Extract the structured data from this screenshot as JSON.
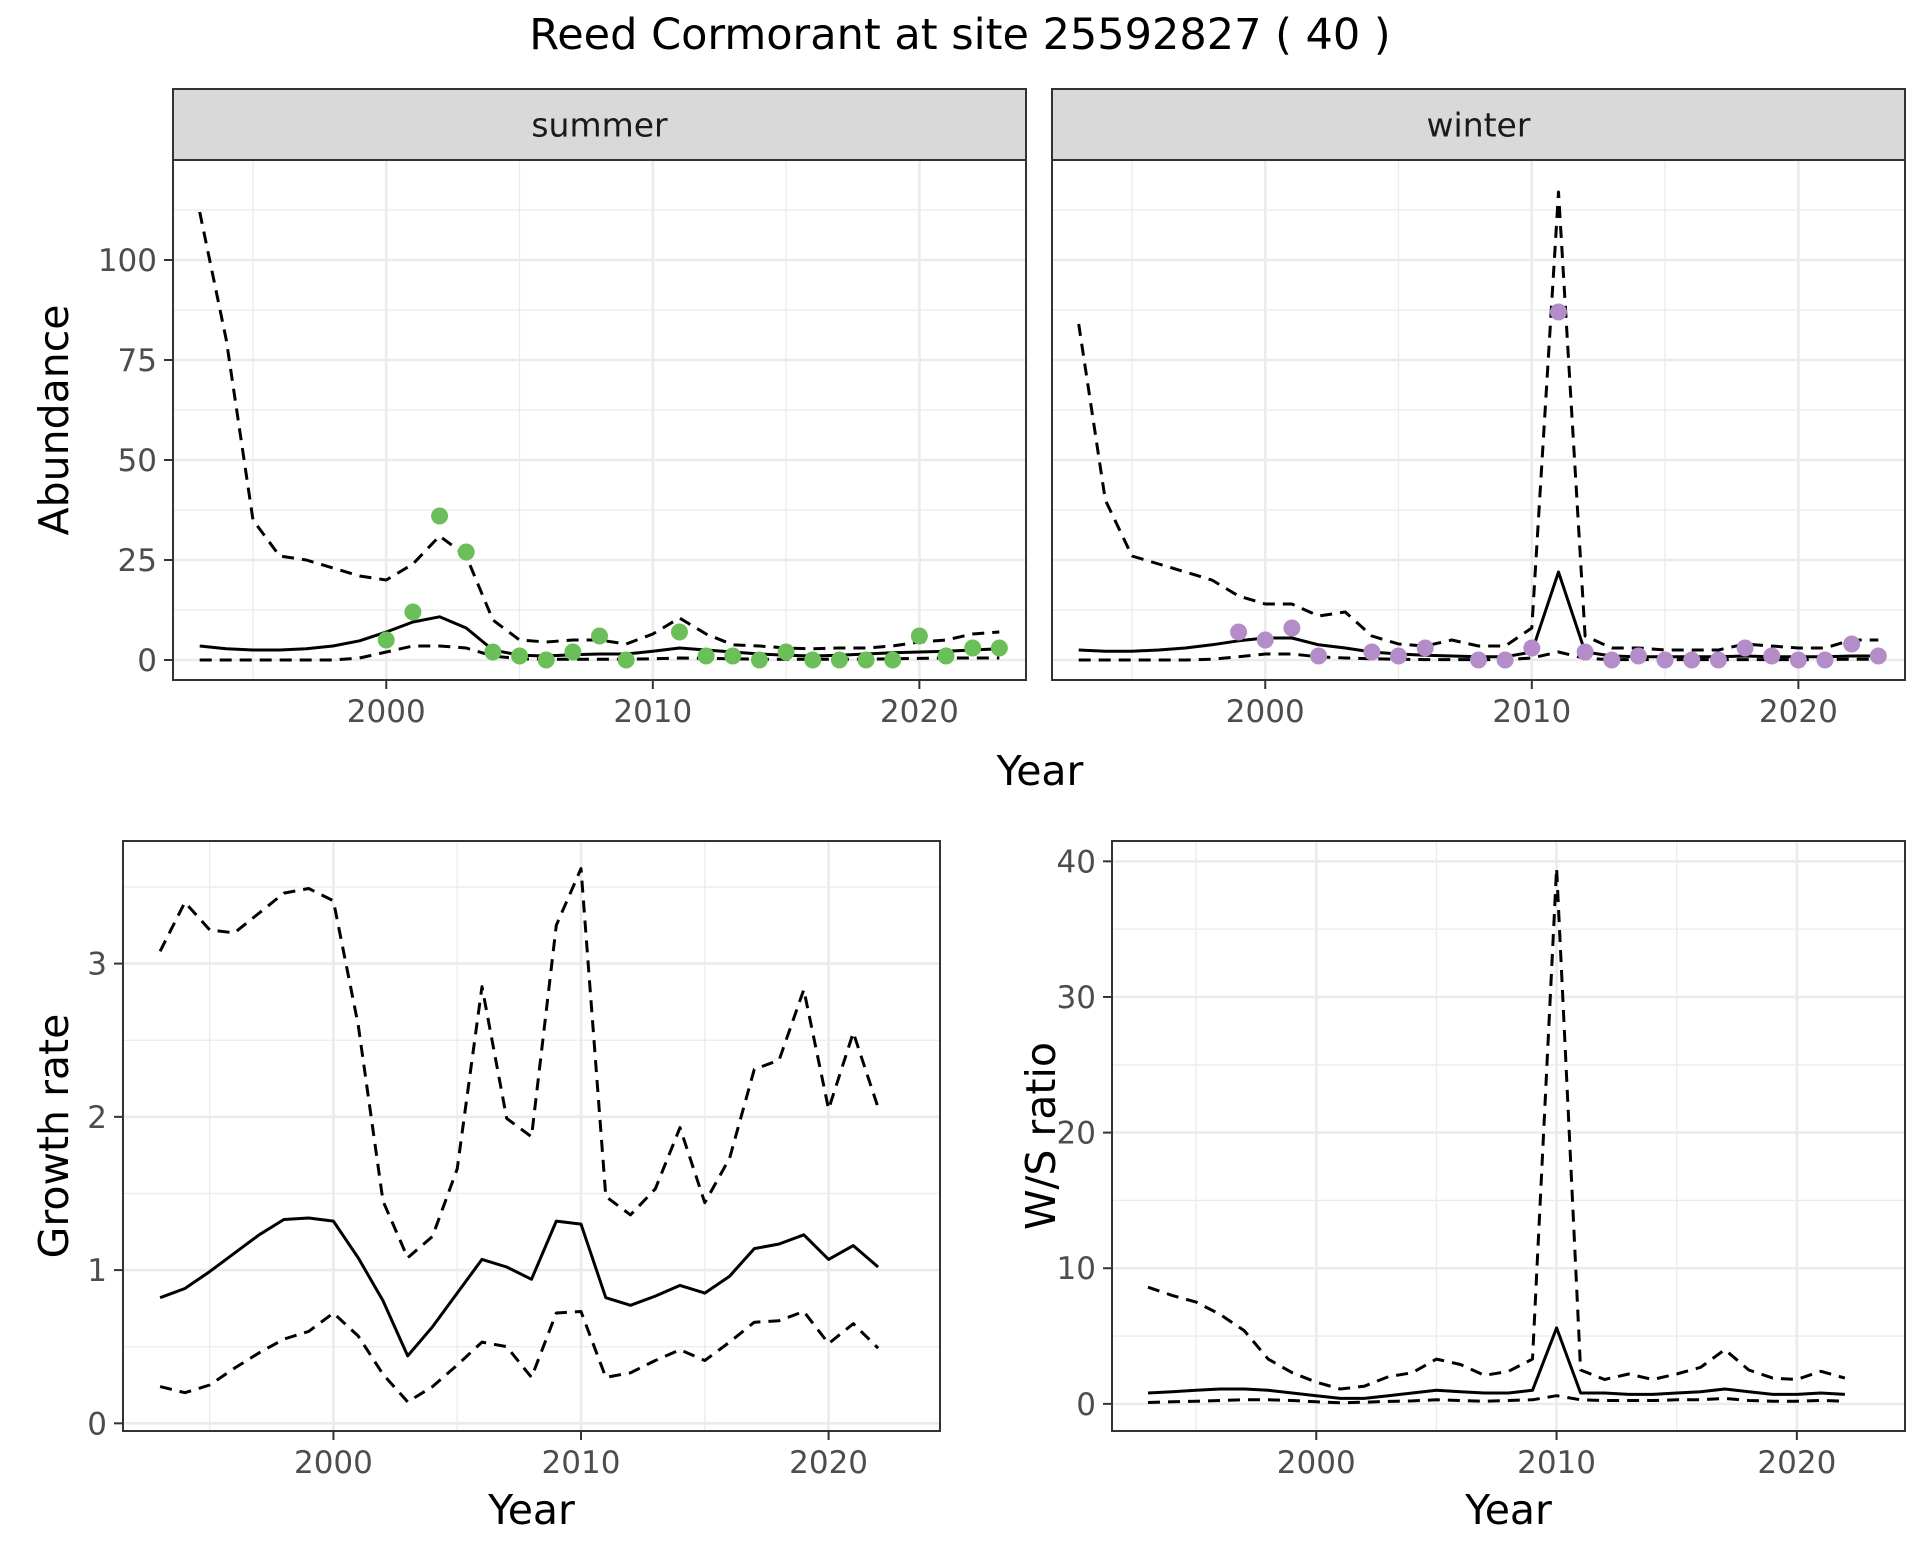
{
  "title": "Reed Cormorant at site 25592827 ( 40 )",
  "colors": {
    "summer": "#6BBF59",
    "winter": "#B48CC8",
    "line": "#000000",
    "strip": "#D9D9D9",
    "grid": "#EBEBEB"
  },
  "chart_data": [
    {
      "type": "line",
      "panel": "summer",
      "facet_label": "summer",
      "xlabel": "Year",
      "ylabel": "Abundance",
      "xlim": [
        1992,
        2024
      ],
      "ylim": [
        -5,
        125
      ],
      "xticks": [
        2000,
        2010,
        2020
      ],
      "yticks": [
        0,
        25,
        50,
        75,
        100
      ],
      "series": [
        {
          "role": "mean",
          "style": "solid",
          "x": [
            1993,
            1994,
            1995,
            1996,
            1997,
            1998,
            1999,
            2000,
            2001,
            2002,
            2003,
            2004,
            2005,
            2006,
            2007,
            2008,
            2009,
            2010,
            2011,
            2012,
            2013,
            2014,
            2015,
            2016,
            2017,
            2018,
            2019,
            2020,
            2021,
            2022,
            2023
          ],
          "y": [
            3.5,
            2.8,
            2.5,
            2.5,
            2.8,
            3.5,
            4.8,
            7,
            9.5,
            10.8,
            8,
            2.5,
            1.2,
            1,
            1.3,
            1.5,
            1.5,
            2.2,
            3,
            2.5,
            2,
            1.5,
            1.2,
            1,
            1.2,
            1.5,
            1.8,
            2,
            2.2,
            2.5,
            2.8
          ]
        },
        {
          "role": "upper",
          "style": "dashed",
          "x": [
            1993,
            1994,
            1995,
            1996,
            1997,
            1998,
            1999,
            2000,
            2001,
            2002,
            2003,
            2004,
            2005,
            2006,
            2007,
            2008,
            2009,
            2010,
            2011,
            2012,
            2013,
            2014,
            2015,
            2016,
            2017,
            2018,
            2019,
            2020,
            2021,
            2022,
            2023
          ],
          "y": [
            112,
            80,
            35,
            26,
            25,
            23,
            21,
            20,
            24,
            31,
            26,
            10,
            5,
            4.5,
            5,
            5,
            4,
            6.5,
            10.5,
            6.5,
            3.8,
            3.5,
            3,
            2.8,
            3,
            3,
            3.5,
            4.5,
            5,
            6.5,
            7
          ]
        },
        {
          "role": "lower",
          "style": "dashed",
          "x": [
            1993,
            1994,
            1995,
            1996,
            1997,
            1998,
            1999,
            2000,
            2001,
            2002,
            2003,
            2004,
            2005,
            2006,
            2007,
            2008,
            2009,
            2010,
            2011,
            2012,
            2013,
            2014,
            2015,
            2016,
            2017,
            2018,
            2019,
            2020,
            2021,
            2022,
            2023
          ],
          "y": [
            0,
            0,
            0,
            0,
            0,
            0,
            0.5,
            2,
            3.5,
            3.5,
            3,
            1,
            0.3,
            0.2,
            0.2,
            0.2,
            0.2,
            0.3,
            0.5,
            0.4,
            0.3,
            0.2,
            0.2,
            0.2,
            0.2,
            0.2,
            0.3,
            0.4,
            0.5,
            0.5,
            0.5
          ]
        },
        {
          "role": "observed",
          "style": "points",
          "x": [
            2000,
            2001,
            2002,
            2003,
            2004,
            2005,
            2006,
            2007,
            2008,
            2009,
            2011,
            2012,
            2013,
            2014,
            2015,
            2016,
            2017,
            2018,
            2019,
            2020,
            2021,
            2022,
            2023
          ],
          "y": [
            5,
            12,
            36,
            27,
            2,
            1,
            0,
            2,
            6,
            0,
            7,
            1,
            1,
            0,
            2,
            0,
            0,
            0,
            0,
            6,
            1,
            3,
            3
          ]
        }
      ]
    },
    {
      "type": "line",
      "panel": "winter",
      "facet_label": "winter",
      "xlabel": "Year",
      "xlim": [
        1992,
        2024
      ],
      "ylim": [
        -5,
        125
      ],
      "xticks": [
        2000,
        2010,
        2020
      ],
      "series": [
        {
          "role": "mean",
          "style": "solid",
          "x": [
            1993,
            1994,
            1995,
            1996,
            1997,
            1998,
            1999,
            2000,
            2001,
            2002,
            2003,
            2004,
            2005,
            2006,
            2007,
            2008,
            2009,
            2010,
            2011,
            2012,
            2013,
            2014,
            2015,
            2016,
            2017,
            2018,
            2019,
            2020,
            2021,
            2022,
            2023
          ],
          "y": [
            2.5,
            2.2,
            2.2,
            2.5,
            3,
            3.8,
            4.8,
            5.5,
            5.5,
            3.8,
            3,
            2,
            1.5,
            1.2,
            1,
            0.8,
            0.8,
            2,
            22,
            2,
            1,
            0.8,
            0.8,
            0.8,
            0.8,
            1,
            0.8,
            0.8,
            0.8,
            1,
            1
          ]
        },
        {
          "role": "upper",
          "style": "dashed",
          "x": [
            1993,
            1994,
            1995,
            1996,
            1997,
            1998,
            1999,
            2000,
            2001,
            2002,
            2003,
            2004,
            2005,
            2006,
            2007,
            2008,
            2009,
            2010,
            2011,
            2012,
            2013,
            2014,
            2015,
            2016,
            2017,
            2018,
            2019,
            2020,
            2021,
            2022,
            2023
          ],
          "y": [
            84,
            40,
            26,
            24,
            22,
            20,
            16,
            14,
            14,
            11,
            12,
            6,
            4,
            3.5,
            5,
            3.5,
            3.5,
            8,
            117,
            6,
            3,
            3,
            2.5,
            2.5,
            2.5,
            4,
            3.5,
            3,
            3,
            5,
            5
          ]
        },
        {
          "role": "lower",
          "style": "dashed",
          "x": [
            1993,
            1994,
            1995,
            1996,
            1997,
            1998,
            1999,
            2000,
            2001,
            2002,
            2003,
            2004,
            2005,
            2006,
            2007,
            2008,
            2009,
            2010,
            2011,
            2012,
            2013,
            2014,
            2015,
            2016,
            2017,
            2018,
            2019,
            2020,
            2021,
            2022,
            2023
          ],
          "y": [
            0,
            0,
            0,
            0,
            0,
            0.2,
            0.8,
            1.5,
            1.5,
            0.8,
            0.5,
            0.3,
            0.2,
            0.1,
            0.1,
            0.1,
            0.1,
            0.5,
            2,
            0.4,
            0.1,
            0.1,
            0.1,
            0.1,
            0.1,
            0.1,
            0.1,
            0.1,
            0.1,
            0.2,
            0.2
          ]
        },
        {
          "role": "observed",
          "style": "points",
          "x": [
            1999,
            2000,
            2001,
            2002,
            2004,
            2005,
            2006,
            2008,
            2009,
            2010,
            2011,
            2012,
            2013,
            2014,
            2015,
            2016,
            2017,
            2018,
            2019,
            2020,
            2021,
            2022,
            2023
          ],
          "y": [
            7,
            5,
            8,
            1,
            2,
            1,
            3,
            0,
            0,
            3,
            87,
            2,
            0,
            1,
            0,
            0,
            0,
            3,
            1,
            0,
            0,
            4,
            1
          ]
        }
      ]
    },
    {
      "type": "line",
      "panel": "growth",
      "xlabel": "Year",
      "ylabel": "Growth rate",
      "xlim": [
        1991.5,
        2024.5
      ],
      "ylim": [
        -0.05,
        3.8
      ],
      "xticks": [
        2000,
        2010,
        2020
      ],
      "yticks": [
        0,
        1,
        2,
        3
      ],
      "series": [
        {
          "role": "mean",
          "style": "solid",
          "x": [
            1993,
            1994,
            1995,
            1996,
            1997,
            1998,
            1999,
            2000,
            2001,
            2002,
            2003,
            2004,
            2005,
            2006,
            2007,
            2008,
            2009,
            2010,
            2011,
            2012,
            2013,
            2014,
            2015,
            2016,
            2017,
            2018,
            2019,
            2020,
            2021,
            2022
          ],
          "y": [
            0.82,
            0.88,
            0.99,
            1.11,
            1.23,
            1.33,
            1.34,
            1.32,
            1.08,
            0.8,
            0.44,
            0.63,
            0.85,
            1.07,
            1.02,
            0.94,
            1.32,
            1.3,
            0.82,
            0.77,
            0.83,
            0.9,
            0.85,
            0.96,
            1.14,
            1.17,
            1.23,
            1.07,
            1.16,
            1.02
          ]
        },
        {
          "role": "upper",
          "style": "dashed",
          "x": [
            1993,
            1994,
            1995,
            1996,
            1997,
            1998,
            1999,
            2000,
            2001,
            2002,
            2003,
            2004,
            2005,
            2006,
            2007,
            2008,
            2009,
            2010,
            2011,
            2012,
            2013,
            2014,
            2015,
            2016,
            2017,
            2018,
            2019,
            2020,
            2021,
            2022
          ],
          "y": [
            3.08,
            3.4,
            3.22,
            3.2,
            3.33,
            3.46,
            3.49,
            3.41,
            2.6,
            1.45,
            1.08,
            1.22,
            1.66,
            2.85,
            1.99,
            1.87,
            3.25,
            3.62,
            1.48,
            1.36,
            1.53,
            1.93,
            1.44,
            1.73,
            2.31,
            2.37,
            2.83,
            2.05,
            2.55,
            2.06
          ]
        },
        {
          "role": "lower",
          "style": "dashed",
          "x": [
            1993,
            1994,
            1995,
            1996,
            1997,
            1998,
            1999,
            2000,
            2001,
            2002,
            2003,
            2004,
            2005,
            2006,
            2007,
            2008,
            2009,
            2010,
            2011,
            2012,
            2013,
            2014,
            2015,
            2016,
            2017,
            2018,
            2019,
            2020,
            2021,
            2022
          ],
          "y": [
            0.24,
            0.2,
            0.25,
            0.36,
            0.46,
            0.55,
            0.6,
            0.72,
            0.57,
            0.32,
            0.14,
            0.24,
            0.38,
            0.53,
            0.5,
            0.3,
            0.72,
            0.73,
            0.3,
            0.33,
            0.41,
            0.48,
            0.41,
            0.53,
            0.66,
            0.67,
            0.73,
            0.52,
            0.65,
            0.49
          ]
        }
      ]
    },
    {
      "type": "line",
      "panel": "ratio",
      "xlabel": "Year",
      "ylabel": "W/S ratio",
      "xlim": [
        1991.5,
        2024.5
      ],
      "ylim": [
        -2,
        41.5
      ],
      "xticks": [
        2000,
        2010,
        2020
      ],
      "yticks": [
        0,
        10,
        20,
        30,
        40
      ],
      "series": [
        {
          "role": "mean",
          "style": "solid",
          "x": [
            1993,
            1994,
            1995,
            1996,
            1997,
            1998,
            1999,
            2000,
            2001,
            2002,
            2003,
            2004,
            2005,
            2006,
            2007,
            2008,
            2009,
            2010,
            2011,
            2012,
            2013,
            2014,
            2015,
            2016,
            2017,
            2018,
            2019,
            2020,
            2021,
            2022
          ],
          "y": [
            0.8,
            0.9,
            1,
            1.1,
            1.1,
            1,
            0.8,
            0.6,
            0.4,
            0.4,
            0.6,
            0.8,
            1,
            0.9,
            0.8,
            0.8,
            1,
            5.6,
            0.8,
            0.8,
            0.7,
            0.7,
            0.8,
            0.9,
            1.1,
            0.9,
            0.7,
            0.7,
            0.8,
            0.7
          ]
        },
        {
          "role": "upper",
          "style": "dashed",
          "x": [
            1993,
            1994,
            1995,
            1996,
            1997,
            1998,
            1999,
            2000,
            2001,
            2002,
            2003,
            2004,
            2005,
            2006,
            2007,
            2008,
            2009,
            2010,
            2011,
            2012,
            2013,
            2014,
            2015,
            2016,
            2017,
            2018,
            2019,
            2020,
            2021,
            2022
          ],
          "y": [
            8.6,
            8,
            7.5,
            6.6,
            5.4,
            3.3,
            2.3,
            1.6,
            1.1,
            1.3,
            2,
            2.3,
            3.3,
            2.9,
            2.1,
            2.4,
            3.3,
            39.5,
            2.5,
            1.8,
            2.2,
            1.8,
            2.2,
            2.7,
            4,
            2.5,
            1.9,
            1.8,
            2.4,
            1.9
          ]
        },
        {
          "role": "lower",
          "style": "dashed",
          "x": [
            1993,
            1994,
            1995,
            1996,
            1997,
            1998,
            1999,
            2000,
            2001,
            2002,
            2003,
            2004,
            2005,
            2006,
            2007,
            2008,
            2009,
            2010,
            2011,
            2012,
            2013,
            2014,
            2015,
            2016,
            2017,
            2018,
            2019,
            2020,
            2021,
            2022
          ],
          "y": [
            0.1,
            0.15,
            0.2,
            0.25,
            0.3,
            0.3,
            0.25,
            0.15,
            0.08,
            0.12,
            0.18,
            0.22,
            0.3,
            0.25,
            0.2,
            0.25,
            0.3,
            0.6,
            0.3,
            0.25,
            0.25,
            0.25,
            0.3,
            0.3,
            0.4,
            0.25,
            0.2,
            0.2,
            0.25,
            0.2
          ]
        }
      ]
    }
  ]
}
